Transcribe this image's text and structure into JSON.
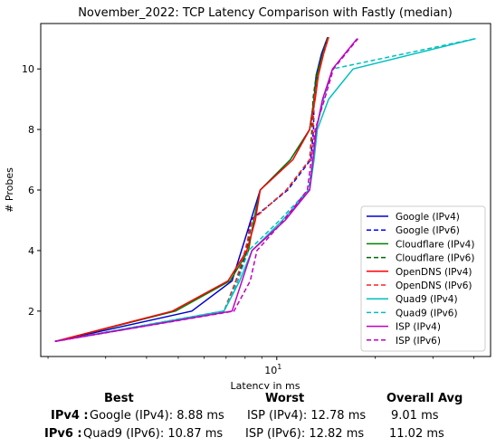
{
  "chart_data": {
    "type": "line",
    "title": "November_2022: TCP Latency Comparison with Fastly (median)",
    "xlabel": "Latency in ms",
    "ylabel": "# Probes",
    "xscale": "log",
    "xlim": [
      1.9,
      45
    ],
    "ylim": [
      0.5,
      11.5
    ],
    "x_ticks": [
      {
        "value": 10,
        "label": "10^1"
      }
    ],
    "y_ticks": [
      2,
      4,
      6,
      8,
      10
    ],
    "legend_position": "lower-right",
    "series": [
      {
        "name": "Google (IPv4)",
        "color": "#0000cc",
        "dash": "solid",
        "points": [
          [
            2.1,
            1
          ],
          [
            5.5,
            2
          ],
          [
            7.3,
            3
          ],
          [
            8.9,
            6
          ],
          [
            11.0,
            7
          ],
          [
            12.6,
            8
          ],
          [
            13.0,
            9
          ],
          [
            13.2,
            9.8
          ],
          [
            13.7,
            10.5
          ],
          [
            14.3,
            11.05
          ]
        ]
      },
      {
        "name": "Google (IPv6)",
        "color": "#0000ff",
        "dash": "dashed",
        "points": [
          [
            2.1,
            1
          ],
          [
            6.9,
            2
          ],
          [
            7.6,
            3
          ],
          [
            8.1,
            4
          ],
          [
            8.3,
            5
          ],
          [
            10.8,
            6
          ],
          [
            12.7,
            7
          ],
          [
            12.95,
            8
          ],
          [
            13.0,
            9
          ],
          [
            13.2,
            9.8
          ],
          [
            13.8,
            10.5
          ],
          [
            14.4,
            11.05
          ]
        ]
      },
      {
        "name": "Cloudflare (IPv4)",
        "color": "#008000",
        "dash": "solid",
        "points": [
          [
            2.1,
            1
          ],
          [
            4.9,
            2
          ],
          [
            7.2,
            3
          ],
          [
            8.2,
            4
          ],
          [
            8.5,
            5
          ],
          [
            8.9,
            6
          ],
          [
            11.0,
            7
          ],
          [
            12.6,
            8
          ],
          [
            13.0,
            9
          ],
          [
            13.3,
            9.8
          ],
          [
            13.8,
            10.5
          ],
          [
            14.4,
            11.05
          ]
        ]
      },
      {
        "name": "Cloudflare (IPv6)",
        "color": "#006400",
        "dash": "dashed",
        "points": [
          [
            2.1,
            1
          ],
          [
            6.9,
            2
          ],
          [
            7.5,
            3
          ],
          [
            8.1,
            4
          ],
          [
            8.4,
            5
          ],
          [
            10.7,
            6
          ],
          [
            12.6,
            7
          ],
          [
            12.8,
            8
          ],
          [
            12.9,
            9
          ],
          [
            13.2,
            9.8
          ],
          [
            13.8,
            10.5
          ],
          [
            14.3,
            11.05
          ]
        ]
      },
      {
        "name": "OpenDNS (IPv4)",
        "color": "#ff0000",
        "dash": "solid",
        "points": [
          [
            2.1,
            1
          ],
          [
            4.8,
            2
          ],
          [
            7.1,
            3
          ],
          [
            8.1,
            4
          ],
          [
            8.6,
            5
          ],
          [
            8.9,
            6
          ],
          [
            11.2,
            7
          ],
          [
            12.6,
            8
          ],
          [
            13.1,
            9
          ],
          [
            13.4,
            9.8
          ],
          [
            13.9,
            10.5
          ],
          [
            14.4,
            11.05
          ]
        ]
      },
      {
        "name": "OpenDNS (IPv6)",
        "color": "#ff2020",
        "dash": "dashed",
        "points": [
          [
            2.1,
            1
          ],
          [
            6.9,
            2
          ],
          [
            7.5,
            3
          ],
          [
            8.0,
            4
          ],
          [
            8.4,
            5
          ],
          [
            10.7,
            6
          ],
          [
            12.6,
            7
          ],
          [
            12.9,
            8
          ],
          [
            13.0,
            9
          ],
          [
            13.4,
            9.8
          ],
          [
            13.9,
            10.5
          ],
          [
            14.4,
            11.05
          ]
        ]
      },
      {
        "name": "Quad9 (IPv4)",
        "color": "#00bfbf",
        "dash": "solid",
        "points": [
          [
            2.1,
            1
          ],
          [
            6.9,
            2
          ],
          [
            7.7,
            3
          ],
          [
            8.4,
            4
          ],
          [
            10.4,
            5
          ],
          [
            12.6,
            6
          ],
          [
            13.0,
            7
          ],
          [
            13.3,
            8
          ],
          [
            14.4,
            9
          ],
          [
            17.1,
            10
          ],
          [
            40.5,
            11
          ]
        ]
      },
      {
        "name": "Quad9 (IPv6)",
        "color": "#00bfbf",
        "dash": "dashed",
        "points": [
          [
            2.1,
            1
          ],
          [
            6.9,
            2
          ],
          [
            7.6,
            3
          ],
          [
            8.2,
            4
          ],
          [
            10.2,
            5
          ],
          [
            12.5,
            6
          ],
          [
            12.9,
            7
          ],
          [
            13.2,
            8
          ],
          [
            13.9,
            9
          ],
          [
            14.8,
            10
          ],
          [
            40.5,
            11
          ]
        ]
      },
      {
        "name": "ISP (IPv4)",
        "color": "#bf00bf",
        "dash": "solid",
        "points": [
          [
            2.1,
            1
          ],
          [
            7.3,
            2
          ],
          [
            8.4,
            4
          ],
          [
            10.6,
            5
          ],
          [
            12.6,
            6
          ],
          [
            13.2,
            8
          ],
          [
            13.8,
            9
          ],
          [
            14.8,
            10
          ],
          [
            17.6,
            11
          ]
        ]
      },
      {
        "name": "ISP (IPv6)",
        "color": "#bf00bf",
        "dash": "dashed",
        "points": [
          [
            2.1,
            1
          ],
          [
            7.4,
            2
          ],
          [
            8.3,
            3
          ],
          [
            8.7,
            4
          ],
          [
            10.5,
            5
          ],
          [
            12.4,
            6
          ],
          [
            13.1,
            8
          ],
          [
            14.0,
            9
          ],
          [
            14.9,
            10
          ],
          [
            17.7,
            11
          ]
        ]
      }
    ]
  },
  "stats": {
    "headers": {
      "best": "Best",
      "worst": "Worst",
      "avg": "Overall Avg"
    },
    "rows": [
      {
        "label": "IPv4 :",
        "best": "Google (IPv4): 8.88 ms",
        "worst": "ISP (IPv4): 12.78 ms",
        "avg": "9.01 ms"
      },
      {
        "label": "IPv6 :",
        "best": "Quad9 (IPv6): 10.87 ms",
        "worst": "ISP (IPv6): 12.82 ms",
        "avg": "11.02 ms"
      }
    ]
  }
}
